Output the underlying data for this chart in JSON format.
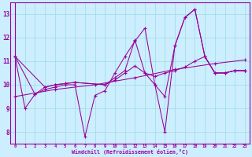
{
  "xlabel": "Windchill (Refroidissement éolien,°C)",
  "bg_color": "#cceeff",
  "grid_color": "#99dddd",
  "line_color": "#990099",
  "xlim": [
    -0.5,
    23.5
  ],
  "ylim": [
    7.5,
    13.5
  ],
  "yticks": [
    8,
    9,
    10,
    11,
    12,
    13
  ],
  "xticks": [
    0,
    1,
    2,
    3,
    4,
    5,
    6,
    7,
    8,
    9,
    10,
    11,
    12,
    13,
    14,
    15,
    16,
    17,
    18,
    19,
    20,
    21,
    22,
    23
  ],
  "series1": [
    [
      0,
      11.2
    ],
    [
      1,
      9.0
    ],
    [
      2,
      9.6
    ],
    [
      3,
      9.8
    ],
    [
      4,
      9.9
    ],
    [
      5,
      10.0
    ],
    [
      6,
      10.0
    ],
    [
      7,
      7.8
    ],
    [
      8,
      9.55
    ],
    [
      9,
      9.75
    ],
    [
      10,
      10.5
    ],
    [
      11,
      11.2
    ],
    [
      12,
      11.85
    ],
    [
      13,
      12.4
    ],
    [
      14,
      10.0
    ],
    [
      15,
      9.5
    ],
    [
      16,
      11.65
    ],
    [
      17,
      12.85
    ],
    [
      18,
      13.2
    ],
    [
      19,
      11.2
    ],
    [
      20,
      10.5
    ],
    [
      21,
      10.5
    ],
    [
      22,
      10.6
    ],
    [
      23,
      10.6
    ]
  ],
  "series2": [
    [
      0,
      11.2
    ],
    [
      2,
      9.6
    ],
    [
      3,
      9.9
    ],
    [
      4,
      10.0
    ],
    [
      5,
      10.05
    ],
    [
      6,
      10.1
    ],
    [
      9,
      10.0
    ],
    [
      10,
      10.2
    ],
    [
      11,
      10.5
    ],
    [
      12,
      10.8
    ],
    [
      13,
      10.5
    ],
    [
      14,
      10.35
    ],
    [
      15,
      10.5
    ],
    [
      16,
      10.6
    ],
    [
      17,
      10.75
    ],
    [
      18,
      11.0
    ],
    [
      19,
      11.2
    ],
    [
      20,
      10.5
    ],
    [
      21,
      10.5
    ],
    [
      22,
      10.6
    ],
    [
      23,
      10.6
    ]
  ],
  "series3": [
    [
      0,
      11.2
    ],
    [
      3,
      9.9
    ],
    [
      4,
      10.0
    ],
    [
      5,
      10.05
    ],
    [
      6,
      10.1
    ],
    [
      9,
      10.0
    ],
    [
      10,
      10.3
    ],
    [
      11,
      10.6
    ],
    [
      12,
      11.9
    ],
    [
      13,
      10.5
    ],
    [
      14,
      10.0
    ],
    [
      15,
      8.0
    ],
    [
      16,
      11.65
    ],
    [
      17,
      12.85
    ],
    [
      18,
      13.2
    ],
    [
      19,
      11.2
    ],
    [
      20,
      10.5
    ],
    [
      21,
      10.5
    ],
    [
      22,
      10.6
    ],
    [
      23,
      10.6
    ]
  ],
  "series4_trend": [
    [
      0,
      9.5
    ],
    [
      4,
      9.8
    ],
    [
      8,
      10.0
    ],
    [
      12,
      10.3
    ],
    [
      16,
      10.65
    ],
    [
      20,
      10.9
    ],
    [
      23,
      11.05
    ]
  ]
}
